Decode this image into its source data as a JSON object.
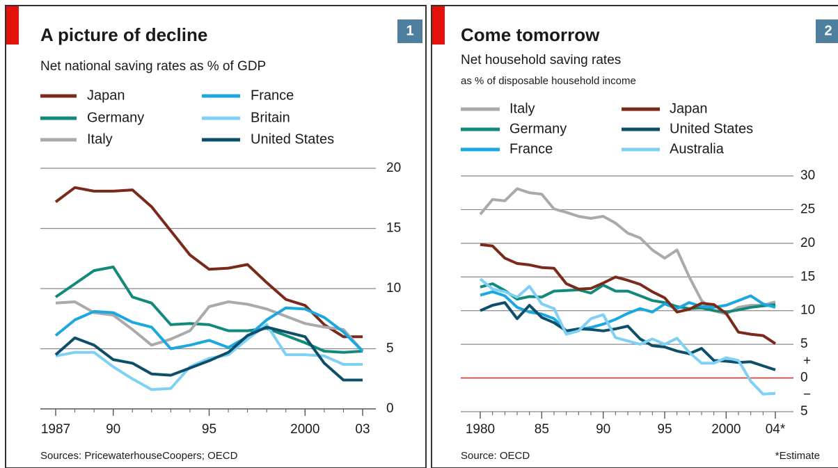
{
  "chart_data": [
    {
      "type": "line",
      "title": "A picture of decline",
      "badge": "1",
      "subtitle": "Net national saving rates as % of GDP",
      "source": "Sources: PricewaterhouseCoopers; OECD",
      "x": [
        1987,
        1988,
        1989,
        1990,
        1991,
        1992,
        1993,
        1994,
        1995,
        1996,
        1997,
        1998,
        1999,
        2000,
        2001,
        2002,
        2003
      ],
      "xlim": [
        1987,
        2003
      ],
      "xticks": [
        1987,
        {
          "value": 1990,
          "label": "90"
        },
        {
          "value": 1995,
          "label": "95"
        },
        2000,
        {
          "value": 2003,
          "label": "03"
        }
      ],
      "ylim": [
        0,
        20
      ],
      "yticks": [
        0,
        5,
        10,
        15,
        20
      ],
      "grid": true,
      "zero_line_color": "#555555",
      "series": [
        {
          "name": "Japan",
          "color": "#7a2a1a",
          "values": [
            17.2,
            18.4,
            18.1,
            18.1,
            18.2,
            16.8,
            14.8,
            12.8,
            11.6,
            11.7,
            12.0,
            10.5,
            9.1,
            8.6,
            7.0,
            6.0,
            6.0
          ]
        },
        {
          "name": "Germany",
          "color": "#13897a",
          "values": [
            9.3,
            10.4,
            11.5,
            11.8,
            9.3,
            8.8,
            7.0,
            7.1,
            7.0,
            6.5,
            6.5,
            6.7,
            6.1,
            5.5,
            4.8,
            4.7,
            4.8
          ]
        },
        {
          "name": "Italy",
          "color": "#aaaaaa",
          "values": [
            8.8,
            8.9,
            8.0,
            7.8,
            6.6,
            5.3,
            5.8,
            6.5,
            8.5,
            8.9,
            8.7,
            8.3,
            7.7,
            7.1,
            6.8,
            6.6,
            4.8
          ]
        },
        {
          "name": "France",
          "color": "#1ba8e0",
          "values": [
            6.1,
            7.4,
            8.1,
            8.0,
            7.2,
            6.8,
            5.0,
            5.3,
            5.7,
            5.1,
            6.0,
            7.4,
            8.4,
            8.3,
            7.6,
            6.4,
            4.8
          ]
        },
        {
          "name": "Britain",
          "color": "#7fd0f5",
          "values": [
            4.4,
            4.7,
            4.7,
            3.5,
            2.5,
            1.6,
            1.7,
            3.5,
            4.2,
            4.5,
            5.8,
            7.0,
            4.5,
            4.5,
            4.4,
            3.7,
            3.7
          ]
        },
        {
          "name": "United States",
          "color": "#0d4f6a",
          "values": [
            4.5,
            5.9,
            5.3,
            4.1,
            3.8,
            2.9,
            2.8,
            3.4,
            4.0,
            4.7,
            6.1,
            6.8,
            6.4,
            6.0,
            3.8,
            2.4,
            2.4
          ]
        }
      ]
    },
    {
      "type": "line",
      "title": "Come tomorrow",
      "badge": "2",
      "subtitle": "Net household saving rates",
      "subsubtitle": "as % of disposable household income",
      "source": "Source: OECD",
      "footnote": "*Estimate",
      "annotations": [
        "+",
        "−"
      ],
      "x": [
        1980,
        1981,
        1982,
        1983,
        1984,
        1985,
        1986,
        1987,
        1988,
        1989,
        1990,
        1991,
        1992,
        1993,
        1994,
        1995,
        1996,
        1997,
        1998,
        1999,
        2000,
        2001,
        2002,
        2003,
        2004
      ],
      "xlim": [
        1980,
        2004
      ],
      "xticks": [
        1980,
        {
          "value": 1985,
          "label": "85"
        },
        {
          "value": 1990,
          "label": "90"
        },
        {
          "value": 1995,
          "label": "95"
        },
        2000,
        {
          "value": 2004,
          "label": "04*"
        }
      ],
      "ylim": [
        -5,
        30
      ],
      "yticks": [
        {
          "value": -5,
          "label": "5"
        },
        0,
        5,
        10,
        15,
        20,
        25,
        30
      ],
      "grid": true,
      "zero_line_color": "#e0302c",
      "series": [
        {
          "name": "Italy",
          "color": "#aaaaaa",
          "values": [
            24.3,
            26.5,
            26.3,
            28.1,
            27.5,
            27.3,
            25.1,
            24.6,
            24.0,
            23.7,
            24.0,
            23.0,
            21.5,
            20.8,
            19.0,
            17.8,
            19.0,
            15.0,
            11.5,
            10.0,
            9.5,
            10.5,
            10.8,
            10.8,
            11.3
          ]
        },
        {
          "name": "Germany",
          "color": "#13897a",
          "values": [
            13.5,
            14.0,
            13.0,
            11.7,
            12.1,
            12.0,
            12.9,
            13.0,
            13.1,
            12.6,
            13.8,
            12.9,
            12.9,
            12.2,
            11.5,
            11.2,
            10.6,
            10.3,
            10.4,
            10.0,
            9.8,
            10.1,
            10.5,
            10.7,
            10.9
          ]
        },
        {
          "name": "France",
          "color": "#1ba8e0",
          "values": [
            12.3,
            12.8,
            12.2,
            10.5,
            9.8,
            9.5,
            8.8,
            7.0,
            7.2,
            7.5,
            8.0,
            8.7,
            9.6,
            10.3,
            9.8,
            11.0,
            10.3,
            11.2,
            10.6,
            10.5,
            10.8,
            11.5,
            12.2,
            11.0,
            10.5
          ]
        },
        {
          "name": "Japan",
          "color": "#7a2a1a",
          "values": [
            19.8,
            19.6,
            17.8,
            17.0,
            16.8,
            16.4,
            16.3,
            14.0,
            13.2,
            13.3,
            14.1,
            15.0,
            14.5,
            13.9,
            12.8,
            11.9,
            9.8,
            10.2,
            11.1,
            10.9,
            9.6,
            6.8,
            6.5,
            6.3,
            5.1
          ]
        },
        {
          "name": "United States",
          "color": "#0d4f6a",
          "values": [
            10.0,
            10.8,
            11.2,
            8.8,
            10.8,
            9.0,
            8.2,
            7.0,
            7.3,
            7.2,
            7.0,
            7.3,
            7.7,
            5.8,
            4.8,
            4.6,
            4.0,
            3.6,
            4.4,
            2.6,
            2.5,
            2.3,
            2.4,
            1.8,
            1.2
          ]
        },
        {
          "name": "Australia",
          "color": "#7fd0f5",
          "values": [
            14.7,
            13.2,
            12.8,
            12.0,
            13.6,
            11.0,
            10.3,
            6.5,
            7.0,
            8.8,
            9.4,
            6.0,
            5.5,
            5.0,
            5.8,
            5.0,
            5.9,
            3.8,
            2.2,
            2.2,
            3.0,
            2.6,
            -0.5,
            -2.4,
            -2.3
          ]
        }
      ]
    }
  ]
}
